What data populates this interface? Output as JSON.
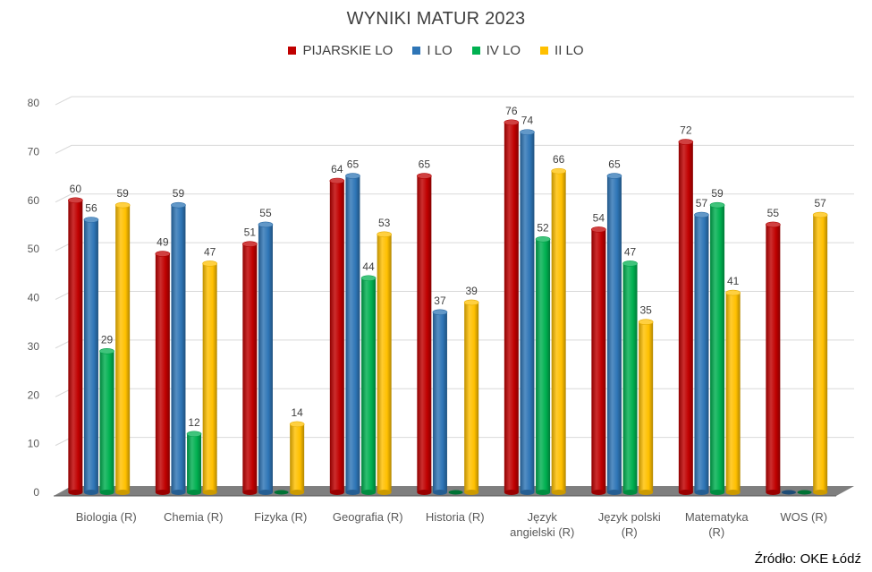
{
  "chart_data": {
    "type": "bar",
    "title": "WYNIKI MATUR 2023",
    "categories": [
      "Biologia (R)",
      "Chemia (R)",
      "Fizyka (R)",
      "Geografia (R)",
      "Historia (R)",
      "Język angielski (R)",
      "Język polski (R)",
      "Matematyka (R)",
      "WOS (R)"
    ],
    "series": [
      {
        "name": "PIJARSKIE LO",
        "color": "#c00000",
        "values": [
          60,
          49,
          51,
          64,
          65,
          76,
          54,
          72,
          55
        ]
      },
      {
        "name": "I LO",
        "color": "#2e75b6",
        "values": [
          56,
          59,
          55,
          65,
          37,
          74,
          65,
          57,
          0
        ]
      },
      {
        "name": "IV LO",
        "color": "#00b050",
        "values": [
          29,
          12,
          0,
          44,
          0,
          52,
          47,
          59,
          0
        ]
      },
      {
        "name": "II LO",
        "color": "#ffc000",
        "values": [
          59,
          47,
          14,
          53,
          39,
          66,
          35,
          41,
          57
        ]
      }
    ],
    "ylim": [
      0,
      80
    ],
    "yticks": [
      0,
      10,
      20,
      30,
      40,
      50,
      60,
      70,
      80
    ],
    "grid": true,
    "legend": "top",
    "xlabel": "",
    "ylabel": ""
  },
  "source": "Źródło: OKE Łódź"
}
